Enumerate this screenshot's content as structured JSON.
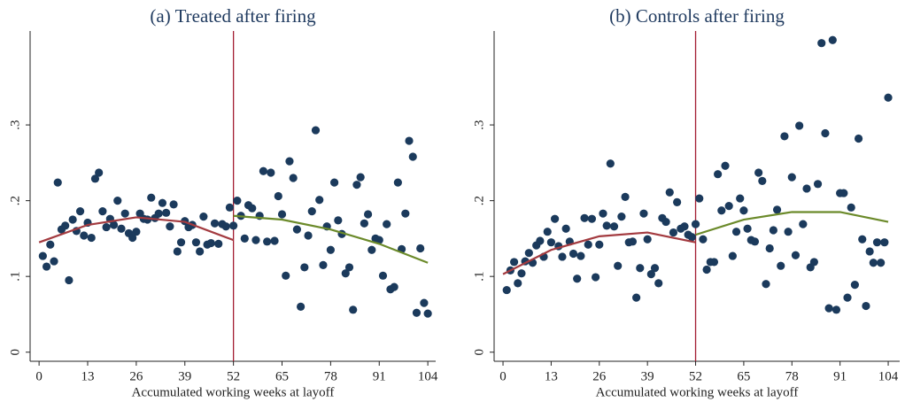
{
  "chart_data": [
    {
      "type": "scatter",
      "title": "(a) Treated after firing",
      "xlabel": "Accumulated working weeks at layoff",
      "xlim": [
        -2.4,
        106.1
      ],
      "ylim": [
        -0.012,
        0.424
      ],
      "xticks": [
        0,
        13,
        26,
        39,
        52,
        65,
        78,
        91,
        104
      ],
      "yticks": [
        0,
        {
          "value": 0.1,
          "label": ".1"
        },
        {
          "value": 0.2,
          "label": ".2"
        },
        {
          "value": 0.3,
          "label": ".3"
        }
      ],
      "vline": 52,
      "vline_color": "#a31d32",
      "series": [
        {
          "kind": "points",
          "color": "#1b3a5c",
          "x": [
            1,
            2,
            3,
            4,
            5,
            6,
            7,
            8,
            9,
            10,
            11,
            12,
            13,
            14,
            15,
            16,
            17,
            18,
            19,
            20,
            21,
            22,
            23,
            24,
            25,
            26,
            27,
            28,
            29,
            30,
            31,
            32,
            33,
            34,
            35,
            36,
            37,
            38,
            39,
            40,
            41,
            42,
            43,
            44,
            45,
            46,
            47,
            48,
            49,
            50,
            51,
            52,
            53,
            54,
            55,
            56,
            57,
            58,
            59,
            60,
            61,
            62,
            63,
            64,
            65,
            66,
            67,
            68,
            69,
            70,
            71,
            72,
            73,
            74,
            75,
            76,
            77,
            78,
            79,
            80,
            81,
            82,
            83,
            84,
            85,
            86,
            87,
            88,
            89,
            90,
            91,
            92,
            93,
            94,
            95,
            96,
            97,
            98,
            99,
            100,
            101,
            102,
            103,
            104
          ],
          "values": [
            0.127,
            0.113,
            0.142,
            0.12,
            0.224,
            0.162,
            0.167,
            0.095,
            0.175,
            0.16,
            0.186,
            0.154,
            0.171,
            0.151,
            0.229,
            0.237,
            0.186,
            0.165,
            0.176,
            0.168,
            0.2,
            0.163,
            0.183,
            0.157,
            0.151,
            0.159,
            0.183,
            0.176,
            0.175,
            0.204,
            0.177,
            0.183,
            0.197,
            0.184,
            0.166,
            0.195,
            0.133,
            0.145,
            0.173,
            0.165,
            0.168,
            0.145,
            0.133,
            0.179,
            0.142,
            0.144,
            0.17,
            0.143,
            0.169,
            0.166,
            0.191,
            0.167,
            0.2,
            0.18,
            0.15,
            0.194,
            0.19,
            0.148,
            0.18,
            0.239,
            0.146,
            0.237,
            0.147,
            0.206,
            0.182,
            0.101,
            0.252,
            0.23,
            0.162,
            0.06,
            0.112,
            0.154,
            0.186,
            0.293,
            0.201,
            0.115,
            0.166,
            0.135,
            0.224,
            0.174,
            0.156,
            0.104,
            0.112,
            0.056,
            0.221,
            0.231,
            0.17,
            0.182,
            0.135,
            0.15,
            0.148,
            0.101,
            0.169,
            0.083,
            0.086,
            0.224,
            0.136,
            0.183,
            0.279,
            0.258,
            0.052,
            0.137,
            0.065,
            0.051
          ]
        },
        {
          "kind": "line",
          "color": "#a33a3f",
          "x": [
            0,
            13,
            26,
            39,
            52
          ],
          "values": [
            0.145,
            0.168,
            0.178,
            0.172,
            0.148
          ]
        },
        {
          "kind": "line",
          "color": "#6b8a2a",
          "x": [
            52,
            65,
            78,
            91,
            104
          ],
          "values": [
            0.18,
            0.175,
            0.162,
            0.143,
            0.118
          ]
        }
      ]
    },
    {
      "type": "scatter",
      "title": "(b) Controls after firing",
      "xlabel": "Accumulated working weeks at layoff",
      "xlim": [
        -2.4,
        107.1
      ],
      "ylim": [
        -0.012,
        0.424
      ],
      "xticks": [
        0,
        13,
        26,
        39,
        52,
        65,
        78,
        91,
        104
      ],
      "yticks": [
        0,
        {
          "value": 0.1,
          "label": ".1"
        },
        {
          "value": 0.2,
          "label": ".2"
        },
        {
          "value": 0.3,
          "label": ".3"
        }
      ],
      "vline": 52,
      "vline_color": "#a31d32",
      "series": [
        {
          "kind": "points",
          "color": "#1b3a5c",
          "x": [
            1,
            2,
            3,
            4,
            5,
            6,
            7,
            8,
            9,
            10,
            11,
            12,
            13,
            14,
            15,
            16,
            17,
            18,
            19,
            20,
            21,
            22,
            23,
            24,
            25,
            26,
            27,
            28,
            29,
            30,
            31,
            32,
            33,
            34,
            35,
            36,
            37,
            38,
            39,
            40,
            41,
            42,
            43,
            44,
            45,
            46,
            47,
            48,
            49,
            50,
            51,
            52,
            53,
            54,
            55,
            56,
            57,
            58,
            59,
            60,
            61,
            62,
            63,
            64,
            65,
            66,
            67,
            68,
            69,
            70,
            71,
            72,
            73,
            74,
            75,
            76,
            77,
            78,
            79,
            80,
            81,
            82,
            83,
            84,
            85,
            86,
            87,
            88,
            89,
            90,
            91,
            92,
            93,
            94,
            95,
            96,
            97,
            98,
            99,
            100,
            101,
            102,
            103,
            104
          ],
          "values": [
            0.082,
            0.108,
            0.119,
            0.091,
            0.104,
            0.12,
            0.131,
            0.118,
            0.141,
            0.147,
            0.126,
            0.159,
            0.145,
            0.176,
            0.14,
            0.126,
            0.163,
            0.146,
            0.13,
            0.097,
            0.127,
            0.177,
            0.142,
            0.176,
            0.099,
            0.142,
            0.183,
            0.167,
            0.249,
            0.166,
            0.114,
            0.179,
            0.205,
            0.145,
            0.146,
            0.072,
            0.111,
            0.183,
            0.149,
            0.103,
            0.111,
            0.091,
            0.177,
            0.172,
            0.211,
            0.158,
            0.198,
            0.163,
            0.166,
            0.155,
            0.152,
            0.169,
            0.203,
            0.149,
            0.109,
            0.119,
            0.119,
            0.235,
            0.187,
            0.246,
            0.193,
            0.127,
            0.159,
            0.203,
            0.187,
            0.163,
            0.148,
            0.146,
            0.237,
            0.226,
            0.09,
            0.137,
            0.161,
            0.188,
            0.114,
            0.285,
            0.159,
            0.231,
            0.128,
            0.299,
            0.169,
            0.216,
            0.112,
            0.119,
            0.222,
            0.408,
            0.289,
            0.058,
            0.412,
            0.056,
            0.21,
            0.21,
            0.072,
            0.191,
            0.089,
            0.282,
            0.149,
            0.061,
            0.133,
            0.118,
            0.145,
            0.118,
            0.145,
            0.336
          ]
        },
        {
          "kind": "line",
          "color": "#a33a3f",
          "x": [
            0,
            13,
            26,
            39,
            52
          ],
          "values": [
            0.103,
            0.135,
            0.153,
            0.158,
            0.145
          ]
        },
        {
          "kind": "line",
          "color": "#6b8a2a",
          "x": [
            52,
            65,
            78,
            91,
            104
          ],
          "values": [
            0.155,
            0.175,
            0.185,
            0.185,
            0.172
          ]
        }
      ]
    }
  ]
}
